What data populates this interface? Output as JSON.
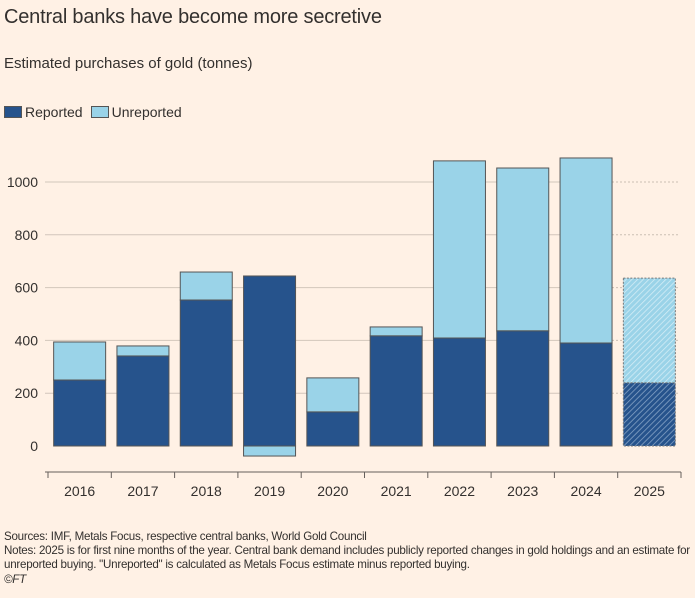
{
  "title": "Central banks have become more secretive",
  "subtitle": "Estimated purchases of gold (tonnes)",
  "colors": {
    "reported": "#26538c",
    "unreported": "#9ad3e8",
    "background": "#fff1e5"
  },
  "chart_data": {
    "type": "bar",
    "stacked": true,
    "categories": [
      "2016",
      "2017",
      "2018",
      "2019",
      "2020",
      "2021",
      "2022",
      "2023",
      "2024",
      "2025"
    ],
    "series": [
      {
        "name": "Reported",
        "values": [
          250,
          341,
          553,
          644,
          129,
          417,
          409,
          436,
          390,
          239
        ]
      },
      {
        "name": "Unreported",
        "values": [
          144,
          38,
          106,
          -38,
          129,
          34,
          671,
          617,
          701,
          397
        ]
      }
    ],
    "estimated_categories": [
      "2025"
    ],
    "yticks": [
      0,
      200,
      400,
      600,
      800,
      1000
    ],
    "ylim": [
      -60,
      1150
    ],
    "grid": true,
    "legend_position": "top-left"
  },
  "footer": {
    "sources": "Sources: IMF, Metals Focus, respective central banks, World Gold Council",
    "notes": "Notes: 2025 is for first nine months of the year. Central bank demand includes publicly reported changes in gold holdings and an estimate for unreported buying. \"Unreported\" is calculated as Metals Focus estimate minus reported buying.",
    "credit": "©FT"
  }
}
